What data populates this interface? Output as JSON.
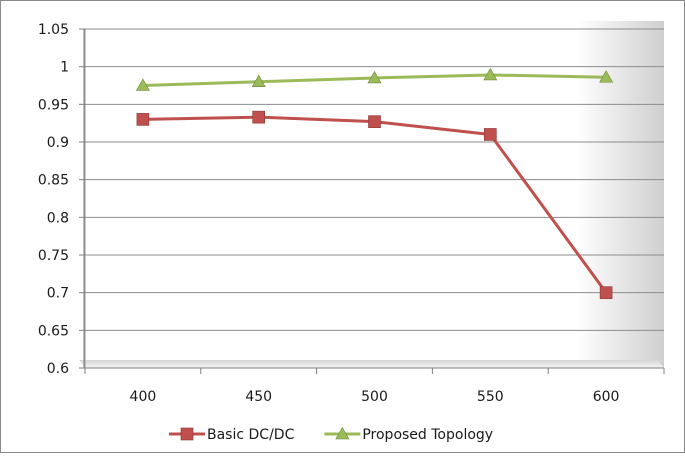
{
  "chart_data": {
    "type": "line",
    "x": [
      "400",
      "450",
      "500",
      "550",
      "600"
    ],
    "series": [
      {
        "name": "Basic DC/DC",
        "values": [
          0.93,
          0.933,
          0.927,
          0.91,
          0.7
        ],
        "color": "#c0504d",
        "marker": "square"
      },
      {
        "name": "Proposed Topology",
        "values": [
          0.975,
          0.98,
          0.985,
          0.989,
          0.986
        ],
        "color": "#9bbb59",
        "marker": "triangle"
      }
    ],
    "y_ticks": [
      "0.6",
      "0.65",
      "0.7",
      "0.75",
      "0.8",
      "0.85",
      "0.9",
      "0.95",
      "1",
      "1.05"
    ],
    "ylim": [
      0.6,
      1.05
    ],
    "grid": "horizontal",
    "legend_position": "bottom"
  }
}
